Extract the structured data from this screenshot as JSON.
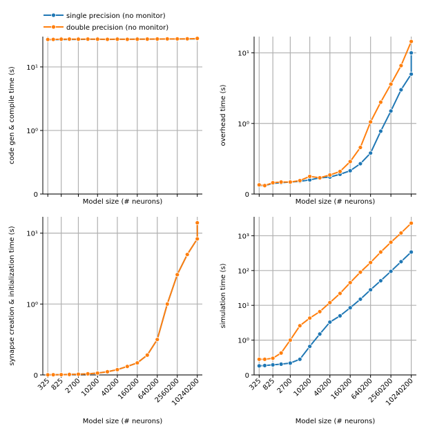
{
  "legend": {
    "location": "top-left",
    "entries": [
      {
        "label": "single precision (no monitor)",
        "color": "#1f77b4"
      },
      {
        "label": "double precision (no monitor)",
        "color": "#ff7f0e"
      }
    ]
  },
  "chart_data": [
    {
      "id": "A",
      "type": "line",
      "xscale": "log",
      "yscale": "symlog",
      "grid": true,
      "xlabel": "Model size (# neurons)",
      "ylabel": "code gen & compile time (s)",
      "x_tick_labels_shown": false,
      "ylim": [
        0,
        30
      ],
      "yticks": [
        {
          "value": 0,
          "label": "0"
        },
        {
          "value": 1,
          "label": "10⁰"
        },
        {
          "value": 10,
          "label": "10¹"
        }
      ],
      "series": [
        {
          "name": "single precision (no monitor)",
          "color": "#1f77b4",
          "y": [
            26.8,
            26.9,
            27.0,
            27.1,
            27.1,
            27.2,
            27.2,
            27.1,
            27.2,
            27.2,
            27.3,
            27.3,
            27.4,
            27.5,
            27.5,
            27.6,
            27.7,
            27.9
          ]
        },
        {
          "name": "double precision (no monitor)",
          "color": "#ff7f0e",
          "y": [
            27.0,
            27.1,
            27.3,
            27.4,
            27.3,
            27.4,
            27.3,
            27.2,
            27.3,
            27.2,
            27.3,
            27.4,
            27.5,
            27.6,
            27.6,
            27.7,
            27.9,
            28.1
          ]
        }
      ]
    },
    {
      "id": "B",
      "type": "line",
      "xscale": "log",
      "yscale": "symlog",
      "grid": true,
      "xlabel": "Model size (# neurons)",
      "ylabel": "overhead time (s)",
      "x_tick_labels_shown": false,
      "ylim": [
        0,
        17
      ],
      "yticks": [
        {
          "value": 0,
          "label": "0"
        },
        {
          "value": 1,
          "label": "10⁰"
        },
        {
          "value": 10,
          "label": "10¹"
        }
      ],
      "series": [
        {
          "name": "single precision (no monitor)",
          "color": "#1f77b4",
          "y": [
            0.12,
            0.12,
            0.15,
            0.16,
            0.17,
            0.18,
            0.2,
            0.23,
            0.24,
            0.28,
            0.33,
            0.43,
            0.58,
            0.89,
            1.5,
            3.0,
            5.0,
            10.0
          ]
        },
        {
          "name": "double precision (no monitor)",
          "color": "#ff7f0e",
          "y": [
            0.13,
            0.12,
            0.16,
            0.17,
            0.17,
            0.19,
            0.25,
            0.23,
            0.27,
            0.32,
            0.46,
            0.66,
            1.05,
            2.0,
            3.6,
            6.6,
            14.5
          ]
        }
      ]
    },
    {
      "id": "C",
      "type": "line",
      "xscale": "log",
      "yscale": "symlog",
      "grid": true,
      "xlabel": "Model size (# neurons)",
      "ylabel": "synapse creation & initialization time (s)",
      "x_tick_labels_shown": true,
      "ylim": [
        0,
        17
      ],
      "yticks": [
        {
          "value": 0,
          "label": "0"
        },
        {
          "value": 1,
          "label": "10⁰"
        },
        {
          "value": 10,
          "label": "10¹"
        }
      ],
      "series": [
        {
          "name": "single precision (no monitor)",
          "color": "#1f77b4",
          "y": [
            0.002,
            0.003,
            0.004,
            0.007,
            0.01,
            0.016,
            0.026,
            0.045,
            0.075,
            0.12,
            0.17,
            0.28,
            0.5,
            1.0,
            2.6,
            5.0,
            8.3,
            14.0
          ]
        },
        {
          "name": "double precision (no monitor)",
          "color": "#ff7f0e",
          "y": [
            0.002,
            0.003,
            0.004,
            0.007,
            0.01,
            0.016,
            0.026,
            0.045,
            0.075,
            0.12,
            0.17,
            0.28,
            0.5,
            1.0,
            2.6,
            5.0,
            8.3,
            14.0
          ]
        }
      ]
    },
    {
      "id": "D",
      "type": "line",
      "xscale": "log",
      "yscale": "symlog",
      "grid": true,
      "xlabel": "Model size (# neurons)",
      "ylabel": "simulation time (s)",
      "x_tick_labels_shown": true,
      "ylim": [
        0,
        3500
      ],
      "yticks": [
        {
          "value": 0,
          "label": "0"
        },
        {
          "value": 1,
          "label": "10⁰"
        },
        {
          "value": 10,
          "label": "10¹"
        },
        {
          "value": 100,
          "label": "10²"
        },
        {
          "value": 1000,
          "label": "10³"
        }
      ],
      "series": [
        {
          "name": "single precision (no monitor)",
          "color": "#1f77b4",
          "y": [
            0.26,
            0.27,
            0.29,
            0.31,
            0.34,
            0.45,
            0.82,
            1.5,
            3.3,
            5.0,
            8.5,
            15,
            28,
            51,
            95,
            180,
            340
          ]
        },
        {
          "name": "double precision (no monitor)",
          "color": "#ff7f0e",
          "y": [
            0.45,
            0.45,
            0.48,
            0.63,
            1.0,
            2.6,
            4.3,
            6.6,
            12,
            22,
            45,
            90,
            170,
            340,
            650,
            1200,
            2300
          ]
        }
      ]
    }
  ],
  "x_axis": {
    "xlim": [
      230,
      14500000
    ],
    "x": [
      325,
      475,
      825,
      1450,
      2700,
      5200,
      10200,
      20200,
      40200,
      80200,
      160200,
      320200,
      640200,
      1280200,
      2560200,
      5120200,
      10240200,
      10240200
    ],
    "ticks": [
      {
        "value": 325,
        "label": "325"
      },
      {
        "value": 825,
        "label": "825"
      },
      {
        "value": 2700,
        "label": "2700"
      },
      {
        "value": 10200,
        "label": "10200"
      },
      {
        "value": 40200,
        "label": "40200"
      },
      {
        "value": 160200,
        "label": "160200"
      },
      {
        "value": 640200,
        "label": "640200"
      },
      {
        "value": 2560200,
        "label": "2560200"
      },
      {
        "value": 10240200,
        "label": "10240200"
      }
    ]
  }
}
